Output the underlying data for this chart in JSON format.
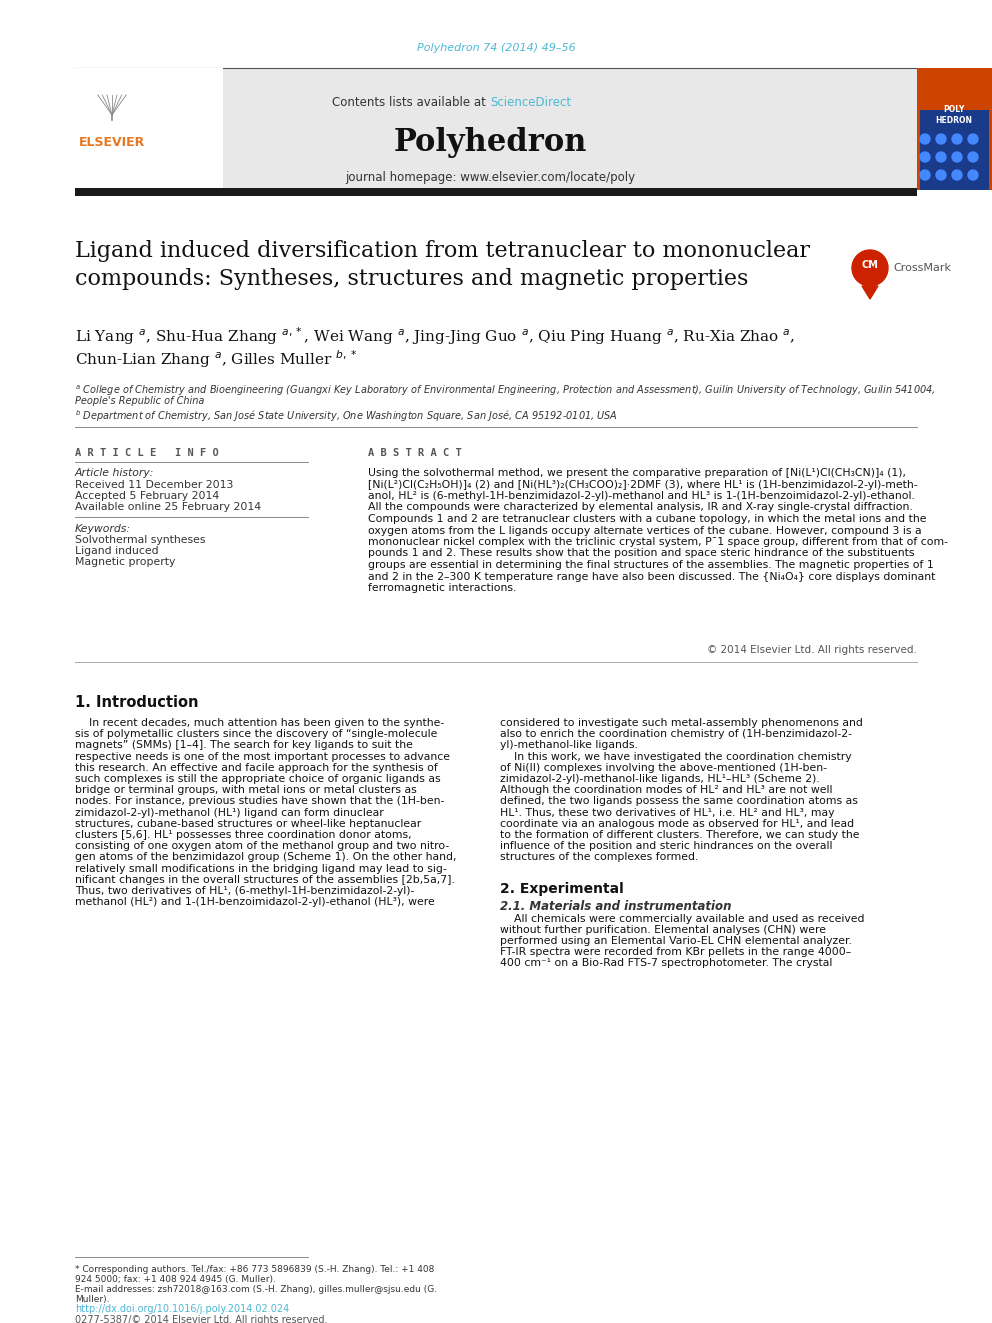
{
  "page_bg": "#ffffff",
  "citation_text": "Polyhedron 74 (2014) 49–56",
  "citation_color": "#4db8d4",
  "journal_header_bg": "#e8e8e8",
  "contents_text": "Contents lists available at ",
  "sciencedirect_text": "ScienceDirect",
  "sciencedirect_color": "#4db8d4",
  "journal_name": "Polyhedron",
  "journal_homepage": "journal homepage: www.elsevier.com/locate/poly",
  "header_bar_color": "#1a1a1a",
  "title_text": "Ligand induced diversification from tetranuclear to mononuclear\ncompounds: Syntheses, structures and magnetic properties",
  "title_fontsize": 16,
  "article_info_header": "A R T I C L E   I N F O",
  "abstract_header": "A B S T R A C T",
  "history_label": "Article history:",
  "received": "Received 11 December 2013",
  "accepted": "Accepted 5 February 2014",
  "available": "Available online 25 February 2014",
  "keywords_label": "Keywords:",
  "keyword1": "Solvothermal syntheses",
  "keyword2": "Ligand induced",
  "keyword3": "Magnetic property",
  "abstract_text": "Using the solvothermal method, we present the comparative preparation of [Ni(L¹)Cl(CH₃CN)]₄ (1),\n[Ni(L²)Cl(C₂H₅OH)]₄ (2) and [Ni(HL³)₂(CH₃COO)₂]·2DMF (3), where HL¹ is (1H-benzimidazol-2-yl)-meth-\nanol, HL² is (6-methyl-1H-benzimidazol-2-yl)-methanol and HL³ is 1-(1H-benzoimidazol-2-yl)-ethanol.\nAll the compounds were characterized by elemental analysis, IR and X-ray single-crystal diffraction.\nCompounds 1 and 2 are tetranuclear clusters with a cubane topology, in which the metal ions and the\noxygen atoms from the L ligands occupy alternate vertices of the cubane. However, compound 3 is a\nmononuclear nickel complex with the triclinic crystal system, P¯1 space group, different from that of com-\npounds 1 and 2. These results show that the position and space steric hindrance of the substituents\ngroups are essential in determining the final structures of the assemblies. The magnetic properties of 1\nand 2 in the 2–300 K temperature range have also been discussed. The {Ni₄O₄} core displays dominant\nferromagnetic interactions.",
  "copyright_text": "© 2014 Elsevier Ltd. All rights reserved.",
  "intro_header": "1. Introduction",
  "intro_col1_lines": [
    "    In recent decades, much attention has been given to the synthe-",
    "sis of polymetallic clusters since the discovery of “single-molecule",
    "magnets” (SMMs) [1–4]. The search for key ligands to suit the",
    "respective needs is one of the most important processes to advance",
    "this research. An effective and facile approach for the synthesis of",
    "such complexes is still the appropriate choice of organic ligands as",
    "bridge or terminal groups, with metal ions or metal clusters as",
    "nodes. For instance, previous studies have shown that the (1H-ben-",
    "zimidazol-2-yl)-methanol (HL¹) ligand can form dinuclear",
    "structures, cubane-based structures or wheel-like heptanuclear",
    "clusters [5,6]. HL¹ possesses three coordination donor atoms,",
    "consisting of one oxygen atom of the methanol group and two nitro-",
    "gen atoms of the benzimidazol group (Scheme 1). On the other hand,",
    "relatively small modifications in the bridging ligand may lead to sig-",
    "nificant changes in the overall structures of the assemblies [2b,5a,7].",
    "Thus, two derivatives of HL¹, (6-methyl-1H-benzimidazol-2-yl)-",
    "methanol (HL²) and 1-(1H-benzoimidazol-2-yl)-ethanol (HL³), were"
  ],
  "intro_col2_lines": [
    "considered to investigate such metal-assembly phenomenons and",
    "also to enrich the coordination chemistry of (1H-benzimidazol-2-",
    "yl)-methanol-like ligands.",
    "    In this work, we have investigated the coordination chemistry",
    "of Ni(II) complexes involving the above-mentioned (1H-ben-",
    "zimidazol-2-yl)-methanol-like ligands, HL¹–HL³ (Scheme 2).",
    "Although the coordination modes of HL² and HL³ are not well",
    "defined, the two ligands possess the same coordination atoms as",
    "HL¹. Thus, these two derivatives of HL¹, i.e. HL² and HL³, may",
    "coordinate via an analogous mode as observed for HL¹, and lead",
    "to the formation of different clusters. Therefore, we can study the",
    "influence of the position and steric hindrances on the overall",
    "structures of the complexes formed."
  ],
  "section2_header": "2. Experimental",
  "section21_header": "2.1. Materials and instrumentation",
  "section21_lines": [
    "    All chemicals were commercially available and used as received",
    "without further purification. Elemental analyses (CHN) were",
    "performed using an Elemental Vario-EL CHN elemental analyzer.",
    "FT-IR spectra were recorded from KBr pellets in the range 4000–",
    "400 cm⁻¹ on a Bio-Rad FTS-7 spectrophotometer. The crystal"
  ],
  "footer_lines": [
    "* Corresponding authors. Tel./fax: +86 773 5896839 (S.-H. Zhang). Tel.: +1 408",
    "924 5000; fax: +1 408 924 4945 (G. Muller).",
    "E-mail addresses: zsh72018@163.com (S.-H. Zhang), gilles.muller@sjsu.edu (G.",
    "Muller)."
  ],
  "doi_text": "http://dx.doi.org/10.1016/j.poly.2014.02.024",
  "doi_color": "#4db8d4",
  "issn_text": "0277-5387/© 2014 Elsevier Ltd. All rights reserved.",
  "elsevier_orange": "#e87722"
}
